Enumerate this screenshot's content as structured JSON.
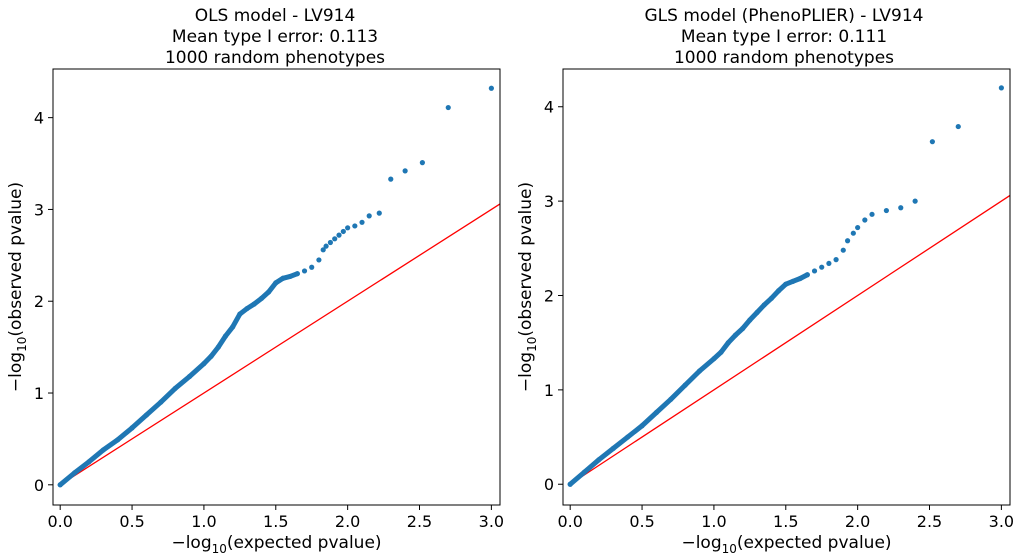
{
  "chart_data": [
    {
      "type": "scatter",
      "title_lines": [
        "OLS model - LV914",
        "Mean type I error: 0.113",
        "1000 random phenotypes"
      ],
      "xlabel": {
        "prefix": "−log",
        "sub": "10",
        "suffix": "(expected pvalue)"
      },
      "ylabel": {
        "prefix": "−log",
        "sub": "10",
        "suffix": "(observed pvalue)"
      },
      "xlim": [
        -0.05,
        3.06
      ],
      "ylim": [
        -0.22,
        4.53
      ],
      "xticks": [
        0.0,
        0.5,
        1.0,
        1.5,
        2.0,
        2.5,
        3.0
      ],
      "xtick_labels": [
        "0.0",
        "0.5",
        "1.0",
        "1.5",
        "2.0",
        "2.5",
        "3.0"
      ],
      "yticks": [
        0,
        1,
        2,
        3,
        4
      ],
      "ytick_labels": [
        "0",
        "1",
        "2",
        "3",
        "4"
      ],
      "grid": false,
      "point_color": "#1f77b4",
      "line_color": "#ff0000",
      "reference_line": [
        [
          0,
          0
        ],
        [
          3.06,
          3.06
        ]
      ],
      "series": [
        {
          "values": [
            [
              0.0,
              0.0
            ],
            [
              0.1,
              0.13
            ],
            [
              0.2,
              0.25
            ],
            [
              0.3,
              0.38
            ],
            [
              0.4,
              0.49
            ],
            [
              0.5,
              0.62
            ],
            [
              0.6,
              0.76
            ],
            [
              0.7,
              0.9
            ],
            [
              0.8,
              1.05
            ],
            [
              0.9,
              1.18
            ],
            [
              1.0,
              1.32
            ],
            [
              1.05,
              1.4
            ],
            [
              1.1,
              1.5
            ],
            [
              1.15,
              1.62
            ],
            [
              1.2,
              1.72
            ],
            [
              1.25,
              1.86
            ],
            [
              1.3,
              1.92
            ],
            [
              1.35,
              1.97
            ],
            [
              1.4,
              2.03
            ],
            [
              1.45,
              2.1
            ],
            [
              1.5,
              2.2
            ],
            [
              1.55,
              2.25
            ],
            [
              1.6,
              2.27
            ],
            [
              1.65,
              2.3
            ],
            [
              1.7,
              2.33
            ],
            [
              1.75,
              2.37
            ],
            [
              1.8,
              2.45
            ],
            [
              1.83,
              2.56
            ],
            [
              1.85,
              2.6
            ],
            [
              1.88,
              2.64
            ],
            [
              1.91,
              2.68
            ],
            [
              1.94,
              2.72
            ],
            [
              1.97,
              2.76
            ],
            [
              2.0,
              2.8
            ],
            [
              2.05,
              2.82
            ],
            [
              2.1,
              2.86
            ],
            [
              2.15,
              2.93
            ],
            [
              2.22,
              2.96
            ],
            [
              2.3,
              3.33
            ],
            [
              2.4,
              3.42
            ],
            [
              2.52,
              3.51
            ],
            [
              2.7,
              4.11
            ],
            [
              3.0,
              4.32
            ]
          ]
        }
      ]
    },
    {
      "type": "scatter",
      "title_lines": [
        "GLS model (PhenoPLIER) - LV914",
        "Mean type I error: 0.111",
        "1000 random phenotypes"
      ],
      "xlabel": {
        "prefix": "−log",
        "sub": "10",
        "suffix": "(expected pvalue)"
      },
      "ylabel": {
        "prefix": "−log",
        "sub": "10",
        "suffix": "(observed pvalue)"
      },
      "xlim": [
        -0.05,
        3.06
      ],
      "ylim": [
        -0.22,
        4.4
      ],
      "xticks": [
        0.0,
        0.5,
        1.0,
        1.5,
        2.0,
        2.5,
        3.0
      ],
      "xtick_labels": [
        "0.0",
        "0.5",
        "1.0",
        "1.5",
        "2.0",
        "2.5",
        "3.0"
      ],
      "yticks": [
        0,
        1,
        2,
        3,
        4
      ],
      "ytick_labels": [
        "0",
        "1",
        "2",
        "3",
        "4"
      ],
      "grid": false,
      "point_color": "#1f77b4",
      "line_color": "#ff0000",
      "reference_line": [
        [
          0,
          0
        ],
        [
          3.06,
          3.06
        ]
      ],
      "series": [
        {
          "values": [
            [
              0.0,
              0.0
            ],
            [
              0.1,
              0.13
            ],
            [
              0.2,
              0.26
            ],
            [
              0.3,
              0.38
            ],
            [
              0.4,
              0.5
            ],
            [
              0.5,
              0.62
            ],
            [
              0.6,
              0.76
            ],
            [
              0.7,
              0.9
            ],
            [
              0.8,
              1.05
            ],
            [
              0.9,
              1.2
            ],
            [
              1.0,
              1.33
            ],
            [
              1.05,
              1.4
            ],
            [
              1.1,
              1.5
            ],
            [
              1.15,
              1.58
            ],
            [
              1.2,
              1.65
            ],
            [
              1.25,
              1.74
            ],
            [
              1.3,
              1.82
            ],
            [
              1.35,
              1.9
            ],
            [
              1.4,
              1.97
            ],
            [
              1.45,
              2.05
            ],
            [
              1.5,
              2.12
            ],
            [
              1.55,
              2.15
            ],
            [
              1.6,
              2.18
            ],
            [
              1.65,
              2.22
            ],
            [
              1.7,
              2.26
            ],
            [
              1.75,
              2.3
            ],
            [
              1.8,
              2.34
            ],
            [
              1.85,
              2.38
            ],
            [
              1.9,
              2.48
            ],
            [
              1.93,
              2.58
            ],
            [
              1.97,
              2.66
            ],
            [
              2.0,
              2.72
            ],
            [
              2.05,
              2.8
            ],
            [
              2.1,
              2.86
            ],
            [
              2.2,
              2.9
            ],
            [
              2.3,
              2.93
            ],
            [
              2.4,
              3.0
            ],
            [
              2.52,
              3.63
            ],
            [
              2.7,
              3.79
            ],
            [
              3.0,
              4.2
            ]
          ]
        }
      ]
    }
  ]
}
